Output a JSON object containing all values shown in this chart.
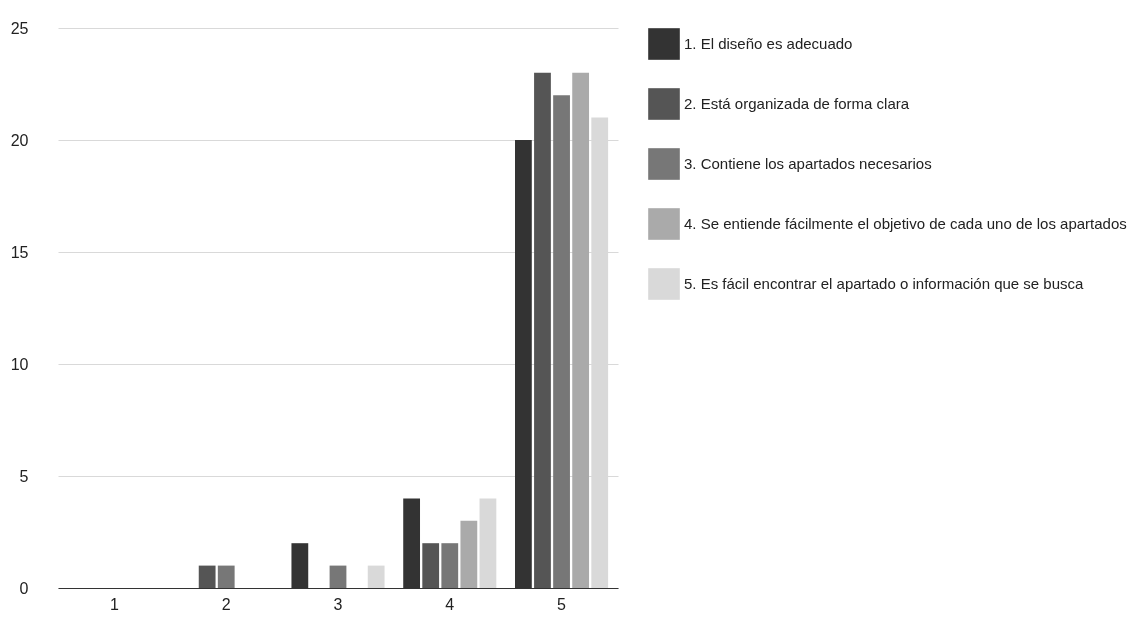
{
  "chart_data": {
    "type": "bar",
    "categories": [
      "1",
      "2",
      "3",
      "4",
      "5"
    ],
    "series": [
      {
        "name": "1. El diseño es adecuado",
        "color": "#333333",
        "values": [
          0,
          0,
          2,
          4,
          20
        ]
      },
      {
        "name": "2. Está organizada de forma clara",
        "color": "#555555",
        "values": [
          0,
          1,
          0,
          2,
          23
        ]
      },
      {
        "name": "3. Contiene los apartados necesarios",
        "color": "#777777",
        "values": [
          0,
          1,
          1,
          2,
          22
        ]
      },
      {
        "name": "4. Se entiende fácilmente el objetivo de cada uno de los apartados",
        "color": "#aaaaaa",
        "values": [
          0,
          0,
          0,
          3,
          23
        ]
      },
      {
        "name": "5. Es fácil encontrar el apartado o información que se busca",
        "color": "#d9d9d9",
        "values": [
          0,
          0,
          1,
          4,
          21
        ]
      }
    ],
    "ylim": [
      0,
      25
    ],
    "yticks": [
      0,
      5,
      10,
      15,
      20,
      25
    ],
    "grid": "y",
    "legend": "right"
  }
}
